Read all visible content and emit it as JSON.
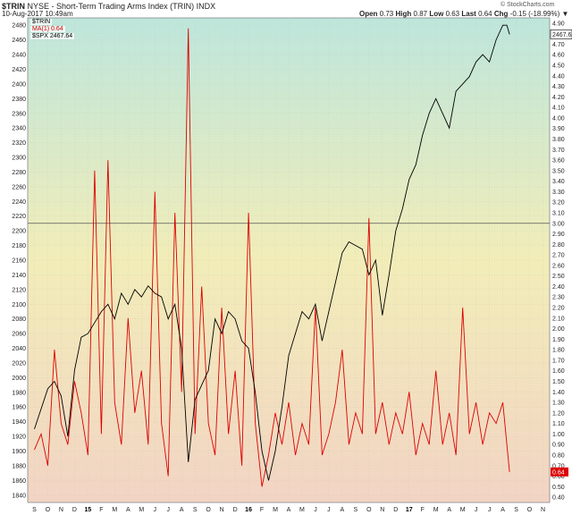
{
  "header": {
    "symbol": "$TRIN",
    "exchange_name": "NYSE - Short-Term Trading Arms Index (TRIN)",
    "suffix": "INDX",
    "date": "10-Aug-2017 10:49am",
    "open_label": "Open",
    "open_value": "0.73",
    "high_label": "High",
    "high_value": "0.87",
    "low_label": "Low",
    "low_value": "0.63",
    "last_label": "Last",
    "last_value": "0.64",
    "chg_label": "Chg",
    "chg_value": "-0.15 (-18.99%)",
    "chg_arrow": "▼",
    "watermark": "© StockCharts.com"
  },
  "legend": {
    "item1": "$TRIN",
    "item2": "MA(1) 0.64",
    "item3": "$SPX 2467.64"
  },
  "colors": {
    "trin": "#dd0000",
    "spx": "#000000",
    "ref_line": "#555555"
  },
  "chart_data": {
    "type": "line",
    "x_tick_labels": [
      "S",
      "O",
      "N",
      "D",
      "15",
      "F",
      "M",
      "A",
      "M",
      "J",
      "J",
      "A",
      "S",
      "O",
      "N",
      "D",
      "16",
      "F",
      "M",
      "A",
      "M",
      "J",
      "J",
      "A",
      "S",
      "O",
      "N",
      "D",
      "17",
      "F",
      "M",
      "A",
      "M",
      "J",
      "J",
      "A",
      "S",
      "O",
      "N"
    ],
    "left_axis": {
      "label": "$SPX",
      "ticks": [
        1840,
        1860,
        1880,
        1900,
        1920,
        1940,
        1960,
        1980,
        2000,
        2020,
        2040,
        2060,
        2080,
        2100,
        2120,
        2140,
        2160,
        2180,
        2200,
        2220,
        2240,
        2260,
        2280,
        2300,
        2320,
        2340,
        2360,
        2380,
        2400,
        2420,
        2440,
        2460,
        2480
      ],
      "range": [
        1830,
        2490
      ]
    },
    "right_axis": {
      "label": "$TRIN",
      "ticks": [
        "0.40",
        "0.50",
        "0.60",
        "0.70",
        "0.80",
        "0.90",
        "1.00",
        "1.10",
        "1.20",
        "1.30",
        "1.40",
        "1.50",
        "1.60",
        "1.70",
        "1.80",
        "1.90",
        "2.00",
        "2.10",
        "2.20",
        "2.30",
        "2.40",
        "2.50",
        "2.60",
        "2.70",
        "2.80",
        "2.90",
        "3.00",
        "3.10",
        "3.20",
        "3.30",
        "3.40",
        "3.50",
        "3.60",
        "3.70",
        "3.80",
        "3.90",
        "4.00",
        "4.10",
        "4.20",
        "4.30",
        "4.40",
        "4.50",
        "4.60",
        "4.70",
        "4.80",
        "4.90"
      ],
      "range": [
        0.35,
        4.95
      ],
      "reference_line": 3.0,
      "last_label": "0.64"
    },
    "spx_last_label": "2467.64",
    "series": [
      {
        "name": "$SPX 2467.64",
        "axis": "left",
        "points": [
          [
            0,
            1930
          ],
          [
            1,
            1985
          ],
          [
            1.5,
            1995
          ],
          [
            2,
            1975
          ],
          [
            2.5,
            1920
          ],
          [
            3,
            2010
          ],
          [
            3.5,
            2055
          ],
          [
            4,
            2060
          ],
          [
            4.5,
            2075
          ],
          [
            5,
            2090
          ],
          [
            5.5,
            2100
          ],
          [
            6,
            2080
          ],
          [
            6.5,
            2115
          ],
          [
            7,
            2100
          ],
          [
            7.5,
            2120
          ],
          [
            8,
            2110
          ],
          [
            8.5,
            2125
          ],
          [
            9,
            2115
          ],
          [
            9.5,
            2110
          ],
          [
            10,
            2080
          ],
          [
            10.5,
            2100
          ],
          [
            11,
            2040
          ],
          [
            11.5,
            1885
          ],
          [
            12,
            1970
          ],
          [
            12.5,
            1990
          ],
          [
            13,
            2010
          ],
          [
            13.5,
            2080
          ],
          [
            14,
            2060
          ],
          [
            14.5,
            2090
          ],
          [
            15,
            2080
          ],
          [
            15.5,
            2050
          ],
          [
            16,
            2040
          ],
          [
            16.5,
            1980
          ],
          [
            17,
            1900
          ],
          [
            17.5,
            1860
          ],
          [
            18,
            1900
          ],
          [
            18.5,
            1960
          ],
          [
            19,
            2030
          ],
          [
            19.5,
            2060
          ],
          [
            20,
            2090
          ],
          [
            20.5,
            2080
          ],
          [
            21,
            2100
          ],
          [
            21.5,
            2050
          ],
          [
            22,
            2090
          ],
          [
            22.5,
            2130
          ],
          [
            23,
            2170
          ],
          [
            23.5,
            2185
          ],
          [
            24,
            2180
          ],
          [
            24.5,
            2175
          ],
          [
            25,
            2140
          ],
          [
            25.5,
            2160
          ],
          [
            26,
            2085
          ],
          [
            26.5,
            2140
          ],
          [
            27,
            2200
          ],
          [
            27.5,
            2230
          ],
          [
            28,
            2270
          ],
          [
            28.5,
            2290
          ],
          [
            29,
            2330
          ],
          [
            29.5,
            2360
          ],
          [
            30,
            2380
          ],
          [
            30.5,
            2360
          ],
          [
            31,
            2340
          ],
          [
            31.5,
            2390
          ],
          [
            32,
            2400
          ],
          [
            32.5,
            2410
          ],
          [
            33,
            2430
          ],
          [
            33.5,
            2440
          ],
          [
            34,
            2430
          ],
          [
            34.5,
            2460
          ],
          [
            35,
            2480
          ],
          [
            35.3,
            2480
          ],
          [
            35.5,
            2467.64
          ]
        ]
      },
      {
        "name": "MA(1) 0.64",
        "axis": "right",
        "points": [
          [
            0,
            0.85
          ],
          [
            0.5,
            1.0
          ],
          [
            1,
            0.7
          ],
          [
            1.5,
            1.8
          ],
          [
            2,
            1.1
          ],
          [
            2.5,
            0.9
          ],
          [
            3,
            1.5
          ],
          [
            3.5,
            1.2
          ],
          [
            4,
            0.8
          ],
          [
            4.5,
            3.5
          ],
          [
            5,
            1.0
          ],
          [
            5.5,
            3.6
          ],
          [
            6,
            1.3
          ],
          [
            6.5,
            0.9
          ],
          [
            7,
            2.1
          ],
          [
            7.5,
            1.2
          ],
          [
            8,
            1.6
          ],
          [
            8.5,
            0.9
          ],
          [
            9,
            3.3
          ],
          [
            9.5,
            1.1
          ],
          [
            10,
            0.6
          ],
          [
            10.5,
            3.1
          ],
          [
            11,
            1.4
          ],
          [
            11.5,
            4.85
          ],
          [
            12,
            1.0
          ],
          [
            12.5,
            2.4
          ],
          [
            13,
            1.1
          ],
          [
            13.5,
            0.8
          ],
          [
            14,
            2.2
          ],
          [
            14.5,
            1.0
          ],
          [
            15,
            1.6
          ],
          [
            15.5,
            0.7
          ],
          [
            16,
            3.1
          ],
          [
            16.5,
            1.1
          ],
          [
            17,
            0.5
          ],
          [
            17.5,
            0.8
          ],
          [
            18,
            1.2
          ],
          [
            18.5,
            0.9
          ],
          [
            19,
            1.3
          ],
          [
            19.5,
            0.8
          ],
          [
            20,
            1.1
          ],
          [
            20.5,
            0.9
          ],
          [
            21,
            2.2
          ],
          [
            21.5,
            0.8
          ],
          [
            22,
            1.0
          ],
          [
            22.5,
            1.3
          ],
          [
            23,
            1.8
          ],
          [
            23.5,
            0.9
          ],
          [
            24,
            1.2
          ],
          [
            24.5,
            1.0
          ],
          [
            25,
            3.05
          ],
          [
            25.5,
            1.0
          ],
          [
            26,
            1.3
          ],
          [
            26.5,
            0.9
          ],
          [
            27,
            1.2
          ],
          [
            27.5,
            1.0
          ],
          [
            28,
            1.4
          ],
          [
            28.5,
            0.8
          ],
          [
            29,
            1.1
          ],
          [
            29.5,
            0.9
          ],
          [
            30,
            1.6
          ],
          [
            30.5,
            0.9
          ],
          [
            31,
            1.2
          ],
          [
            31.5,
            0.8
          ],
          [
            32,
            2.2
          ],
          [
            32.5,
            1.0
          ],
          [
            33,
            1.3
          ],
          [
            33.5,
            0.9
          ],
          [
            34,
            1.2
          ],
          [
            34.5,
            1.1
          ],
          [
            35,
            1.3
          ],
          [
            35.3,
            0.9
          ],
          [
            35.5,
            0.64
          ]
        ]
      }
    ]
  }
}
